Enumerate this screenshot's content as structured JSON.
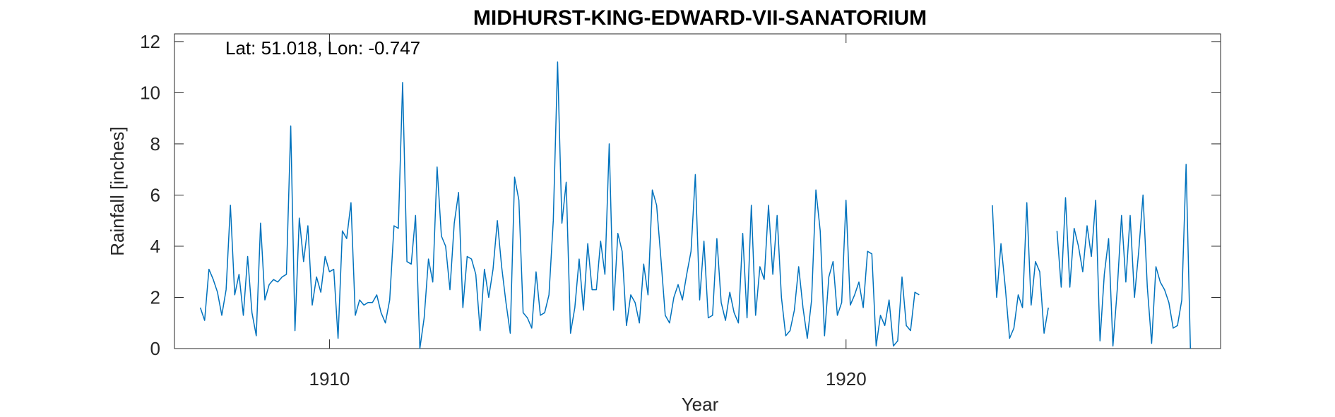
{
  "chart_data": {
    "type": "line",
    "title": "MIDHURST-KING-EDWARD-VII-SANATORIUM",
    "xlabel": "Year",
    "ylabel": "Rainfall [inches]",
    "annotation": "Lat: 51.018, Lon: -0.747",
    "xlim": [
      1907.0,
      1927.25
    ],
    "ylim": [
      0,
      12.3
    ],
    "xticks": [
      1910,
      1920
    ],
    "yticks": [
      0,
      2,
      4,
      6,
      8,
      10,
      12
    ],
    "grid": false,
    "line_color": "#0072BD",
    "x_start": 1907.5,
    "x_step": 0.08333,
    "series": [
      {
        "values": [
          1.6,
          1.1,
          3.1,
          2.7,
          2.2,
          1.3,
          2.3,
          5.6,
          2.1,
          2.9,
          1.3,
          3.6,
          1.4,
          0.5,
          4.9,
          1.9,
          2.5,
          2.7,
          2.6,
          2.8,
          2.9,
          8.7,
          0.7,
          5.1,
          3.4,
          4.8,
          1.7,
          2.8,
          2.2,
          3.6,
          3.0,
          3.1,
          0.4,
          4.6,
          4.3,
          5.7,
          1.3,
          1.9,
          1.7,
          1.8,
          1.8,
          2.1,
          1.4,
          1.0,
          1.9,
          4.8,
          4.7,
          10.4,
          3.4,
          3.3,
          5.2,
          0.0,
          1.2,
          3.5,
          2.6,
          7.1,
          4.4,
          4.0,
          2.3,
          4.9,
          6.1,
          1.6,
          3.6,
          3.5,
          2.9,
          0.7,
          3.1,
          2.0,
          3.1,
          5.0,
          3.2,
          1.8,
          0.6,
          6.7,
          5.8,
          1.4,
          1.2,
          0.8,
          3.0,
          1.3,
          1.4,
          2.1,
          5.0,
          11.2,
          4.9,
          6.5,
          0.6,
          1.6,
          3.5,
          1.5,
          4.1,
          2.3,
          2.3,
          4.2,
          2.9,
          8.0,
          1.5,
          4.5,
          3.8,
          0.9,
          2.1,
          1.8,
          1.0,
          3.3,
          2.1,
          6.2,
          5.6,
          3.5,
          1.3,
          1.0,
          2.0,
          2.5,
          1.9,
          2.9,
          3.8,
          6.8,
          1.9,
          4.2,
          1.2,
          1.3,
          4.3,
          1.8,
          1.1,
          2.2,
          1.4,
          1.0,
          4.5,
          1.2,
          5.6,
          1.3,
          3.2,
          2.7,
          5.6,
          2.9,
          5.2,
          2.0,
          0.5,
          0.7,
          1.5,
          3.2,
          1.6,
          0.4,
          1.9,
          6.2,
          4.6,
          0.5,
          2.8,
          3.4,
          1.3,
          1.8,
          5.8,
          1.7,
          2.1,
          2.6,
          1.6,
          3.8,
          3.7,
          0.1,
          1.3,
          0.9,
          1.9,
          0.1,
          0.3,
          2.8,
          0.9,
          0.7,
          2.2,
          2.1,
          null,
          null,
          null,
          null,
          null,
          null,
          null,
          null,
          null,
          null,
          null,
          null,
          null,
          null,
          null,
          null,
          5.6,
          2.0,
          4.1,
          2.4,
          0.4,
          0.8,
          2.1,
          1.6,
          5.7,
          1.7,
          3.4,
          3.0,
          0.6,
          1.6,
          null,
          4.6,
          2.4,
          5.9,
          2.4,
          4.7,
          4.0,
          3.0,
          4.8,
          3.6,
          5.8,
          0.3,
          2.9,
          4.3,
          0.1,
          2.3,
          5.2,
          2.6,
          5.2,
          2.0,
          3.8,
          6.0,
          2.4,
          0.2,
          3.2,
          2.6,
          2.3,
          1.8,
          0.8,
          0.9,
          1.9,
          7.2,
          0.0
        ]
      }
    ]
  }
}
